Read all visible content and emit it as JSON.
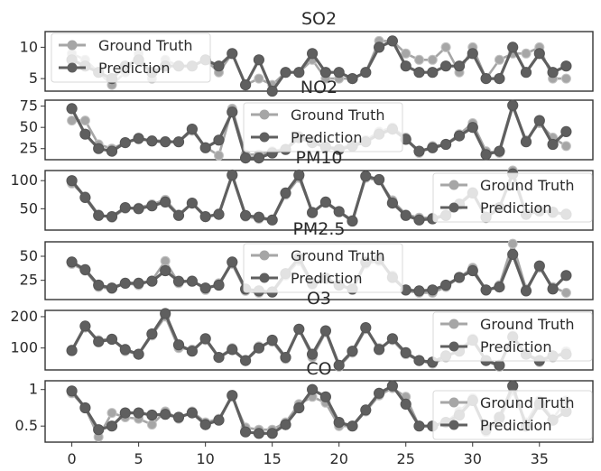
{
  "chart_data": [
    {
      "type": "line",
      "title": "SO2",
      "ylim": [
        3,
        12.5
      ],
      "yticks": [
        5,
        10
      ],
      "legend": "top-left",
      "x": [
        0,
        1,
        2,
        3,
        4,
        5,
        6,
        7,
        8,
        9,
        10,
        11,
        12,
        13,
        14,
        15,
        16,
        17,
        18,
        19,
        20,
        21,
        22,
        23,
        24,
        25,
        26,
        27,
        28,
        29,
        30,
        31,
        32,
        33,
        34,
        35,
        36,
        37
      ],
      "series": [
        {
          "name": "Ground Truth",
          "color": "#a6a6a6",
          "values": [
            9,
            8,
            6,
            4,
            6,
            9,
            5,
            8,
            7,
            7,
            8,
            6,
            9,
            4,
            5,
            4,
            6,
            6,
            8,
            5,
            5,
            5,
            6,
            11,
            11,
            9,
            8,
            8,
            10,
            6,
            10,
            5,
            8,
            9,
            9,
            10,
            5,
            5
          ]
        },
        {
          "name": "Prediction",
          "color": "#5f5f5f",
          "values": [
            8,
            7,
            6,
            5,
            7,
            8,
            6,
            7,
            7,
            7,
            8,
            7,
            9,
            4,
            8,
            3,
            6,
            6,
            9,
            6,
            6,
            5,
            6,
            10,
            11,
            7,
            6,
            6,
            7,
            7,
            9,
            5,
            5,
            10,
            6,
            9,
            6,
            7
          ]
        }
      ]
    },
    {
      "type": "line",
      "title": "NO2",
      "ylim": [
        12,
        82
      ],
      "yticks": [
        25,
        50,
        75
      ],
      "legend": "top-center",
      "x": [
        0,
        1,
        2,
        3,
        4,
        5,
        6,
        7,
        8,
        9,
        10,
        11,
        12,
        13,
        14,
        15,
        16,
        17,
        18,
        19,
        20,
        21,
        22,
        23,
        24,
        25,
        26,
        27,
        28,
        29,
        30,
        31,
        32,
        33,
        34,
        35,
        36,
        37
      ],
      "series": [
        {
          "name": "Ground Truth",
          "color": "#a6a6a6",
          "values": [
            58,
            58,
            30,
            25,
            32,
            36,
            35,
            34,
            33,
            46,
            27,
            17,
            72,
            18,
            18,
            22,
            25,
            40,
            35,
            28,
            25,
            30,
            35,
            45,
            50,
            38,
            20,
            28,
            30,
            42,
            55,
            22,
            20,
            74,
            35,
            55,
            38,
            28
          ]
        },
        {
          "name": "Prediction",
          "color": "#5f5f5f",
          "values": [
            72,
            42,
            25,
            22,
            32,
            37,
            34,
            33,
            33,
            48,
            26,
            35,
            68,
            14,
            14,
            20,
            24,
            38,
            32,
            27,
            24,
            28,
            33,
            42,
            48,
            36,
            22,
            26,
            30,
            40,
            50,
            18,
            22,
            76,
            33,
            58,
            30,
            45
          ]
        }
      ]
    },
    {
      "type": "line",
      "title": "PM10",
      "ylim": [
        12,
        118
      ],
      "yticks": [
        50,
        100
      ],
      "legend": "top-right",
      "x": [
        0,
        1,
        2,
        3,
        4,
        5,
        6,
        7,
        8,
        9,
        10,
        11,
        12,
        13,
        14,
        15,
        16,
        17,
        18,
        19,
        20,
        21,
        22,
        23,
        24,
        25,
        26,
        27,
        28,
        29,
        30,
        31,
        32,
        33,
        34,
        35,
        36,
        37
      ],
      "series": [
        {
          "name": "Ground Truth",
          "color": "#a6a6a6",
          "values": [
            95,
            72,
            40,
            34,
            50,
            52,
            58,
            66,
            40,
            60,
            35,
            42,
            108,
            36,
            32,
            30,
            75,
            105,
            45,
            60,
            45,
            30,
            105,
            100,
            65,
            40,
            34,
            34,
            40,
            60,
            80,
            33,
            50,
            118,
            42,
            48,
            42,
            42
          ]
        },
        {
          "name": "Prediction",
          "color": "#5f5f5f",
          "values": [
            100,
            70,
            38,
            36,
            52,
            50,
            55,
            62,
            38,
            60,
            36,
            40,
            110,
            38,
            35,
            30,
            78,
            110,
            43,
            62,
            45,
            28,
            108,
            102,
            60,
            38,
            30,
            32,
            38,
            58,
            78,
            35,
            52,
            112,
            40,
            46,
            44,
            40
          ]
        }
      ]
    },
    {
      "type": "line",
      "title": "PM2.5",
      "ylim": [
        5,
        65
      ],
      "yticks": [
        25,
        50
      ],
      "legend": "top-center",
      "x": [
        0,
        1,
        2,
        3,
        4,
        5,
        6,
        7,
        8,
        9,
        10,
        11,
        12,
        13,
        14,
        15,
        16,
        17,
        18,
        19,
        20,
        21,
        22,
        23,
        24,
        25,
        26,
        27,
        28,
        29,
        30,
        31,
        32,
        33,
        34,
        35,
        36,
        37
      ],
      "series": [
        {
          "name": "Ground Truth",
          "color": "#a6a6a6",
          "values": [
            42,
            35,
            18,
            16,
            22,
            20,
            25,
            45,
            22,
            25,
            15,
            22,
            42,
            14,
            12,
            12,
            30,
            45,
            20,
            28,
            20,
            15,
            42,
            45,
            30,
            14,
            12,
            12,
            18,
            28,
            38,
            14,
            20,
            63,
            16,
            38,
            18,
            12
          ]
        },
        {
          "name": "Prediction",
          "color": "#5f5f5f",
          "values": [
            44,
            36,
            20,
            17,
            22,
            22,
            24,
            35,
            24,
            24,
            17,
            20,
            44,
            16,
            14,
            13,
            32,
            48,
            22,
            27,
            20,
            16,
            44,
            47,
            28,
            15,
            14,
            15,
            20,
            28,
            35,
            15,
            18,
            52,
            14,
            40,
            16,
            30
          ]
        }
      ]
    },
    {
      "type": "line",
      "title": "O3",
      "ylim": [
        30,
        220
      ],
      "yticks": [
        100,
        200
      ],
      "legend": "top-right",
      "x": [
        0,
        1,
        2,
        3,
        4,
        5,
        6,
        7,
        8,
        9,
        10,
        11,
        12,
        13,
        14,
        15,
        16,
        17,
        18,
        19,
        20,
        21,
        22,
        23,
        24,
        25,
        26,
        27,
        28,
        29,
        30,
        31,
        32,
        33,
        34,
        35,
        36,
        37
      ],
      "series": [
        {
          "name": "Ground Truth",
          "color": "#a6a6a6",
          "values": [
            95,
            165,
            125,
            130,
            90,
            80,
            140,
            200,
            100,
            95,
            125,
            70,
            100,
            60,
            105,
            120,
            65,
            160,
            70,
            150,
            40,
            85,
            160,
            100,
            125,
            80,
            60,
            50,
            70,
            95,
            130,
            60,
            40,
            140,
            80,
            55,
            70,
            90
          ]
        },
        {
          "name": "Prediction",
          "color": "#5f5f5f",
          "values": [
            92,
            170,
            120,
            128,
            95,
            80,
            145,
            210,
            110,
            90,
            130,
            70,
            95,
            60,
            100,
            125,
            70,
            160,
            80,
            155,
            45,
            90,
            165,
            95,
            130,
            85,
            60,
            55,
            75,
            90,
            125,
            60,
            45,
            135,
            80,
            60,
            75,
            80
          ]
        }
      ]
    },
    {
      "type": "line",
      "title": "CO",
      "ylim": [
        0.28,
        1.12
      ],
      "yticks": [
        0.5,
        1.0
      ],
      "xticks": [
        0,
        5,
        10,
        15,
        20,
        25,
        30,
        35
      ],
      "legend": "top-right",
      "x": [
        0,
        1,
        2,
        3,
        4,
        5,
        6,
        7,
        8,
        9,
        10,
        11,
        12,
        13,
        14,
        15,
        16,
        17,
        18,
        19,
        20,
        21,
        22,
        23,
        24,
        25,
        26,
        27,
        28,
        29,
        30,
        31,
        32,
        33,
        34,
        35,
        36,
        37
      ],
      "series": [
        {
          "name": "Ground Truth",
          "color": "#a6a6a6",
          "values": [
            0.95,
            0.75,
            0.35,
            0.68,
            0.62,
            0.6,
            0.52,
            0.7,
            0.6,
            0.7,
            0.55,
            0.6,
            0.9,
            0.48,
            0.45,
            0.45,
            0.55,
            0.8,
            0.9,
            0.82,
            0.5,
            0.5,
            0.7,
            0.92,
            1.02,
            0.9,
            0.5,
            0.5,
            0.55,
            0.7,
            0.88,
            0.42,
            0.58,
            0.98,
            0.55,
            0.85,
            0.6,
            0.85
          ]
        },
        {
          "name": "Prediction",
          "color": "#5f5f5f",
          "values": [
            0.98,
            0.75,
            0.45,
            0.5,
            0.68,
            0.68,
            0.65,
            0.66,
            0.62,
            0.68,
            0.52,
            0.58,
            0.92,
            0.42,
            0.4,
            0.4,
            0.52,
            0.75,
            1.0,
            0.9,
            0.55,
            0.5,
            0.72,
            0.95,
            1.05,
            0.8,
            0.5,
            0.5,
            0.55,
            0.65,
            0.85,
            0.45,
            0.62,
            1.05,
            0.5,
            0.8,
            0.58,
            0.7
          ]
        }
      ]
    }
  ]
}
